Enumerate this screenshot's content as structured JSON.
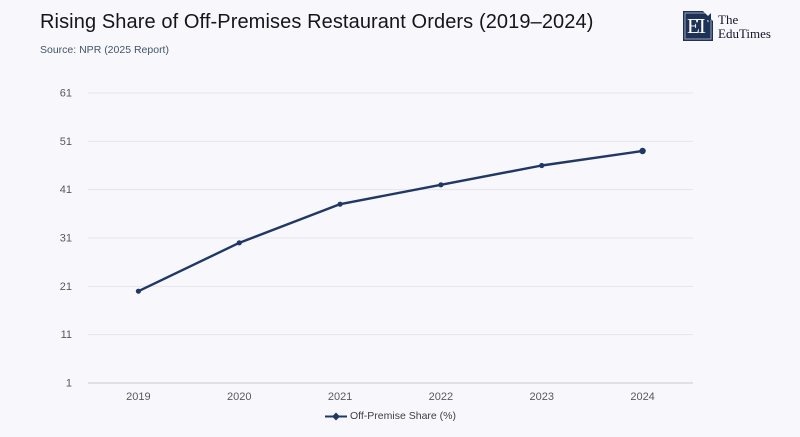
{
  "header": {
    "title": "Rising Share of Off-Premises Restaurant Orders (2019–2024)",
    "source": "Source: NPR (2025 Report)"
  },
  "logo": {
    "monogram": "ET",
    "name_line1": "The",
    "name_line2": "EduTimes",
    "box_color": "#1e3157"
  },
  "chart_data": {
    "type": "line",
    "title": "Rising Share of Off-Premises Restaurant Orders (2019–2024)",
    "categories": [
      "2019",
      "2020",
      "2021",
      "2022",
      "2023",
      "2024"
    ],
    "series": [
      {
        "name": "Off-Premise Share (%)",
        "values": [
          20,
          30,
          38,
          42,
          46,
          49
        ]
      }
    ],
    "xlabel": "",
    "ylabel": "",
    "ylim": [
      1,
      61
    ],
    "yticks": [
      1,
      11,
      21,
      31,
      41,
      51,
      61
    ],
    "grid": true,
    "legend_position": "bottom",
    "colors": {
      "line": "#1f3864",
      "gridline": "#e5e5ea",
      "axis_line": "#c9c9d0",
      "tick_label": "#595959",
      "background": "#f8f8fc"
    }
  }
}
